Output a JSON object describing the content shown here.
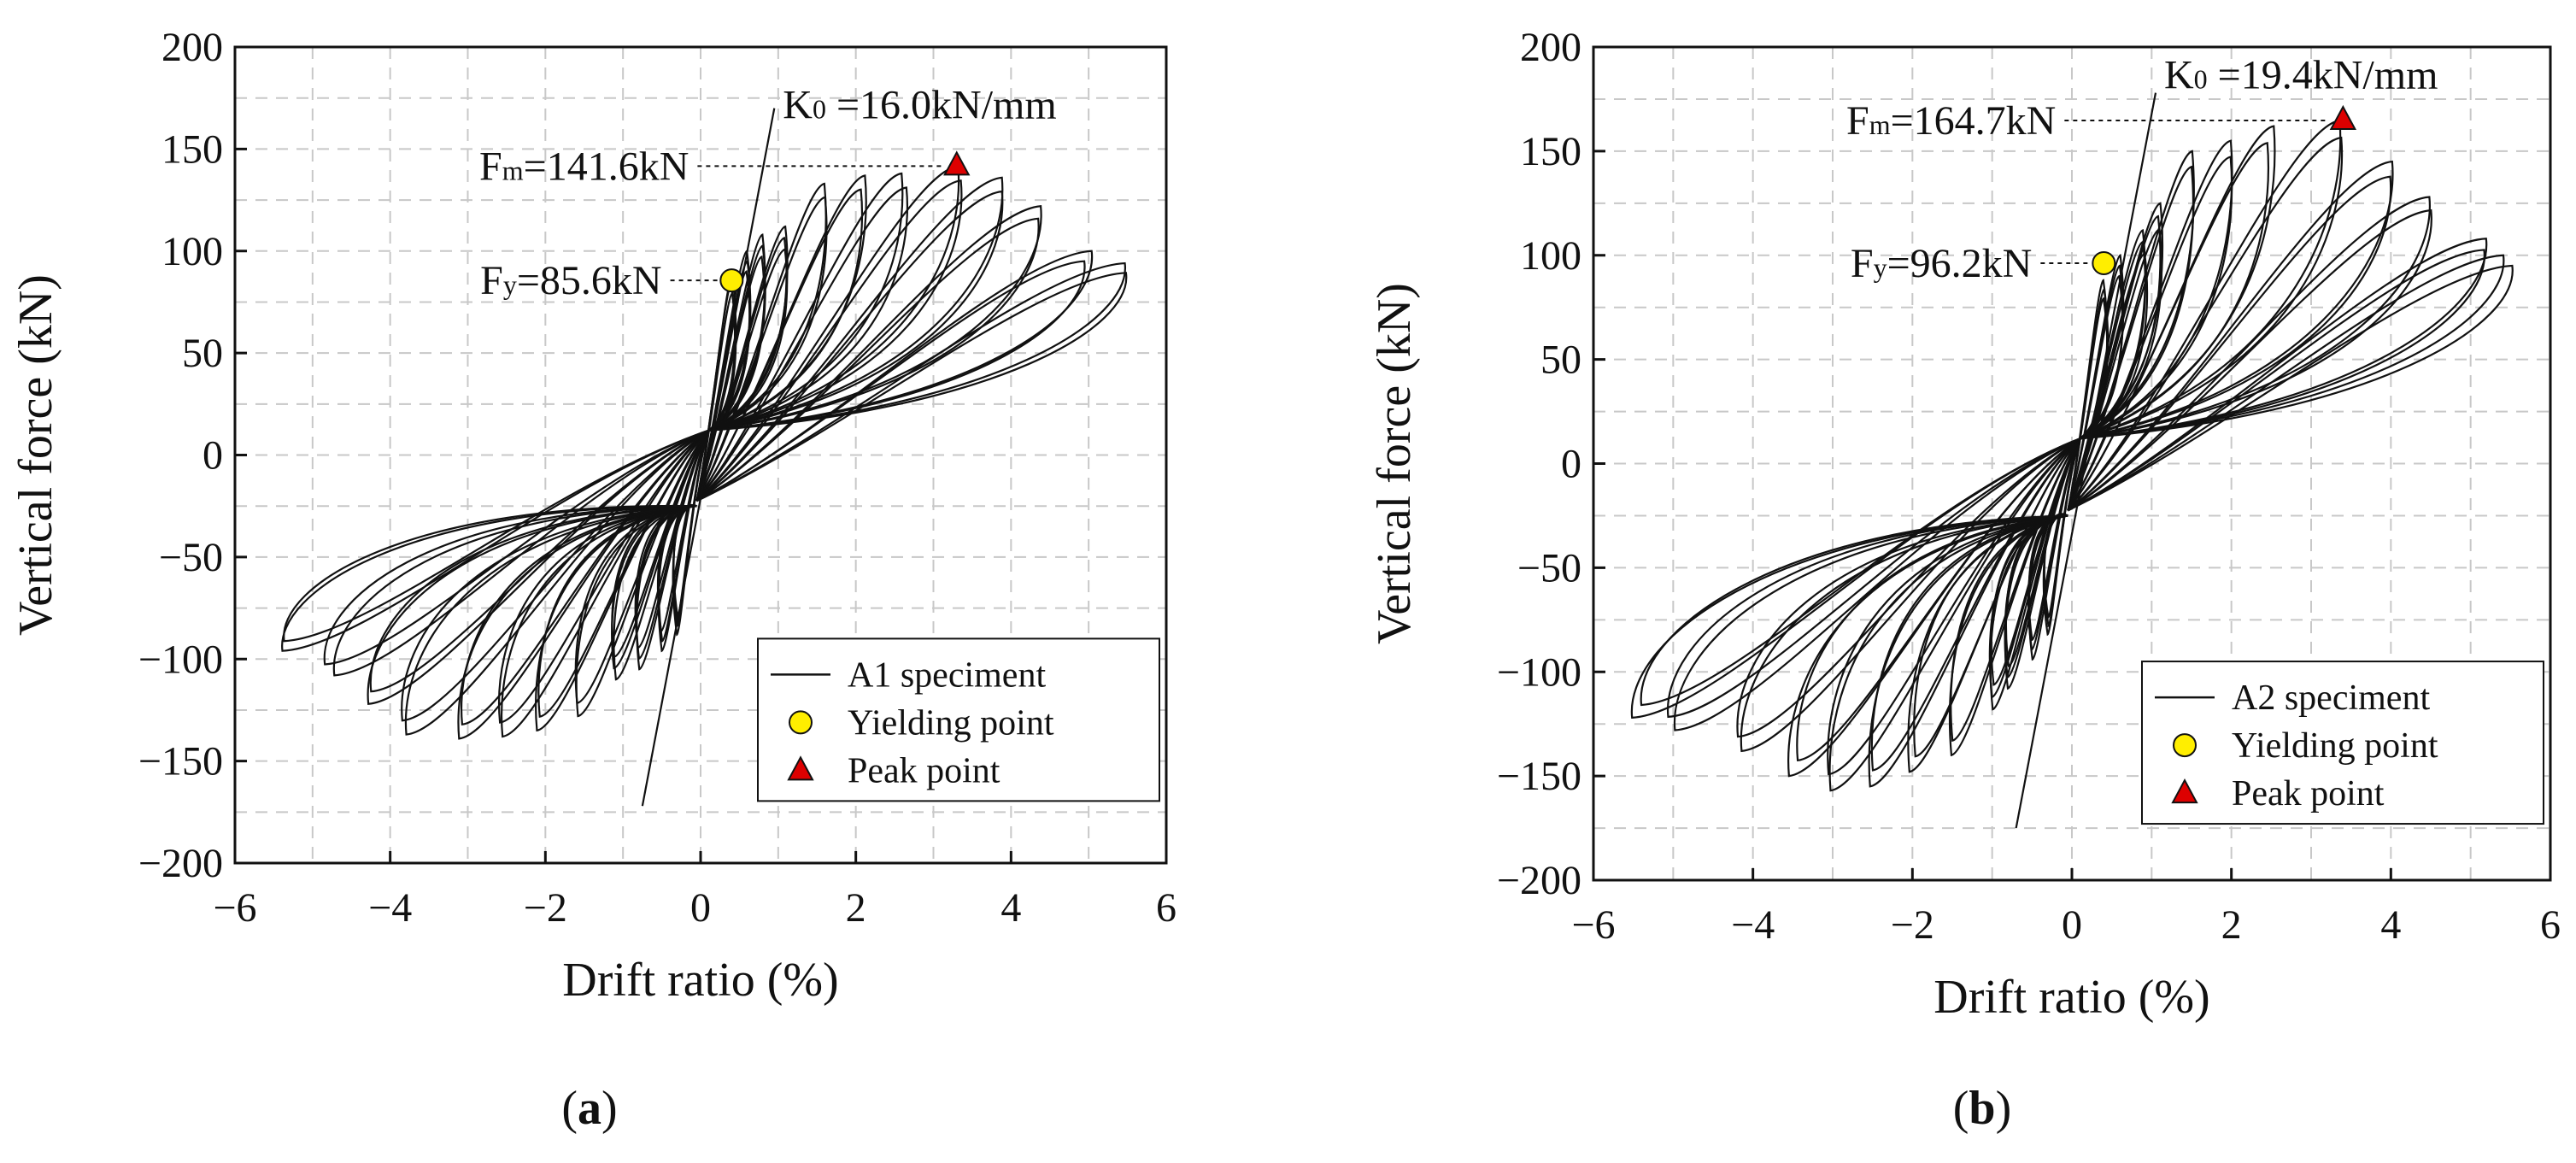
{
  "chart_data": [
    {
      "type": "line",
      "panel_label": "a",
      "xlabel": "Drift ratio (%)",
      "ylabel": "Vertical force (kN)",
      "xlim": [
        -6,
        6
      ],
      "ylim": [
        -200,
        200
      ],
      "xticks": [
        -6,
        -4,
        -2,
        0,
        2,
        4,
        6
      ],
      "yticks": [
        -200,
        -150,
        -100,
        -50,
        0,
        50,
        100,
        150,
        200
      ],
      "xtick_labels": [
        "−6",
        "−4",
        "−2",
        "0",
        "2",
        "4",
        "6"
      ],
      "ytick_labels": [
        "−200",
        "−150",
        "−100",
        "−50",
        "0",
        "50",
        "100",
        "150",
        "200"
      ],
      "grid": true,
      "legend_position": "bottom-right",
      "colors": {
        "curve": "#111111",
        "yield_fill": "#ffee00",
        "peak_fill": "#dd0000"
      },
      "loops": {
        "positive_drift": [
          0.4,
          0.6,
          0.8,
          1.1,
          1.6,
          2.1,
          2.6,
          3.3,
          3.9,
          4.4,
          5.0,
          5.4
        ],
        "positive_force": [
          88,
          100,
          108,
          112,
          133,
          137,
          138,
          141.6,
          136,
          122,
          100,
          94
        ],
        "negative_drift": [
          -0.3,
          -0.5,
          -0.8,
          -1.1,
          -1.6,
          -2.1,
          -2.6,
          -3.1,
          -3.8,
          -4.3,
          -4.8,
          -5.3
        ],
        "negative_force": [
          -88,
          -96,
          -105,
          -110,
          -128,
          -135,
          -138,
          -139,
          -137,
          -122,
          -108,
          -96
        ]
      },
      "yield_point": {
        "x": 0.4,
        "y": 85.6,
        "label": "Fy=85.6kN",
        "label_main": "F",
        "label_sub": "y",
        "label_rest": "=85.6kN"
      },
      "peak_point": {
        "x": 3.3,
        "y": 141.6,
        "label": "Fm=141.6kN",
        "label_main": "F",
        "label_sub": "m",
        "label_rest": "=141.6kN"
      },
      "stiffness_line": {
        "label": "K0 =16.0kN/mm",
        "label_main": "K",
        "label_sub": "0",
        "label_rest": " =16.0kN/mm",
        "x1": -0.75,
        "y1": -172,
        "x2": 0.95,
        "y2": 170
      },
      "legend": [
        {
          "kind": "line",
          "label": "A1 speciment"
        },
        {
          "kind": "circle",
          "label": "Yielding point"
        },
        {
          "kind": "triangle",
          "label": "Peak point"
        }
      ]
    },
    {
      "type": "line",
      "panel_label": "b",
      "xlabel": "Drift ratio (%)",
      "ylabel": "Vertical force (kN)",
      "xlim": [
        -6,
        6
      ],
      "ylim": [
        -200,
        200
      ],
      "xticks": [
        -6,
        -4,
        -2,
        0,
        2,
        4,
        6
      ],
      "yticks": [
        -200,
        -150,
        -100,
        -50,
        0,
        50,
        100,
        150,
        200
      ],
      "xtick_labels": [
        "−6",
        "−4",
        "−2",
        "0",
        "2",
        "4",
        "6"
      ],
      "ytick_labels": [
        "−200",
        "−150",
        "−100",
        "−50",
        "0",
        "50",
        "100",
        "150",
        "200"
      ],
      "grid": true,
      "legend_position": "bottom-right",
      "colors": {
        "curve": "#111111",
        "yield_fill": "#ffee00",
        "peak_fill": "#dd0000"
      },
      "loops": {
        "positive_drift": [
          0.4,
          0.6,
          0.9,
          1.1,
          1.5,
          2.0,
          2.5,
          3.4,
          4.0,
          4.5,
          5.2,
          5.5
        ],
        "positive_force": [
          88,
          100,
          112,
          125,
          150,
          155,
          162,
          164.7,
          145,
          128,
          108,
          100
        ],
        "negative_drift": [
          -0.3,
          -0.5,
          -0.8,
          -1.0,
          -1.5,
          -2.0,
          -2.5,
          -3.0,
          -3.5,
          -4.2,
          -5.0,
          -5.5
        ],
        "negative_force": [
          -82,
          -94,
          -108,
          -118,
          -140,
          -148,
          -155,
          -157,
          -150,
          -138,
          -128,
          -122
        ]
      },
      "yield_point": {
        "x": 0.4,
        "y": 96.2,
        "label": "Fy=96.2kN",
        "label_main": "F",
        "label_sub": "y",
        "label_rest": "=96.2kN"
      },
      "peak_point": {
        "x": 3.4,
        "y": 164.7,
        "label": "Fm=164.7kN",
        "label_main": "F",
        "label_sub": "m",
        "label_rest": "=164.7kN"
      },
      "stiffness_line": {
        "label": "K0 =19.4kN/mm",
        "label_main": "K",
        "label_sub": "0",
        "label_rest": " =19.4kN/mm",
        "x1": -0.7,
        "y1": -175,
        "x2": 1.05,
        "y2": 178
      },
      "legend": [
        {
          "kind": "line",
          "label": "A2 speciment"
        },
        {
          "kind": "circle",
          "label": "Yielding point"
        },
        {
          "kind": "triangle",
          "label": "Peak point"
        }
      ]
    }
  ],
  "captions": {
    "a": "a",
    "b": "b"
  }
}
